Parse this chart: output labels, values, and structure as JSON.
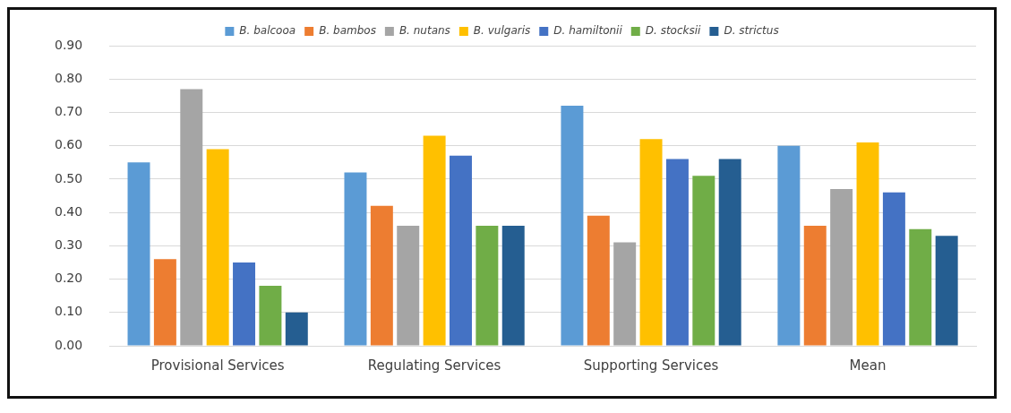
{
  "chart_data": {
    "type": "bar",
    "categories": [
      "Provisional Services",
      "Regulating Services",
      "Supporting Services",
      "Mean"
    ],
    "series": [
      {
        "name": "B. balcooa",
        "color": "#5b9bd5",
        "values": [
          0.55,
          0.52,
          0.72,
          0.6
        ]
      },
      {
        "name": "B. bambos",
        "color": "#ed7d31",
        "values": [
          0.26,
          0.42,
          0.39,
          0.36
        ]
      },
      {
        "name": "B. nutans",
        "color": "#a5a5a5",
        "values": [
          0.77,
          0.36,
          0.31,
          0.47
        ]
      },
      {
        "name": "B. vulgaris",
        "color": "#ffc000",
        "values": [
          0.59,
          0.63,
          0.62,
          0.61
        ]
      },
      {
        "name": "D. hamiltonii",
        "color": "#4472c4",
        "values": [
          0.25,
          0.57,
          0.56,
          0.46
        ]
      },
      {
        "name": "D. stocksii",
        "color": "#70ad47",
        "values": [
          0.18,
          0.36,
          0.51,
          0.35
        ]
      },
      {
        "name": "D. strictus",
        "color": "#255e91",
        "values": [
          0.1,
          0.36,
          0.56,
          0.33
        ]
      }
    ],
    "ylim": [
      0,
      0.9
    ],
    "yticks": [
      {
        "value": 0,
        "label": "0.00"
      },
      {
        "value": 0.1,
        "label": "0.10"
      },
      {
        "value": 0.2,
        "label": "0.20"
      },
      {
        "value": 0.3,
        "label": "0.30"
      },
      {
        "value": 0.4,
        "label": "0.40"
      },
      {
        "value": 0.5,
        "label": "0.50"
      },
      {
        "value": 0.6,
        "label": "0.60"
      },
      {
        "value": 0.7,
        "label": "0.70"
      },
      {
        "value": 0.8,
        "label": "0.80"
      },
      {
        "value": 0.9,
        "label": "0.90"
      }
    ],
    "grid": "y",
    "legend": "top"
  }
}
